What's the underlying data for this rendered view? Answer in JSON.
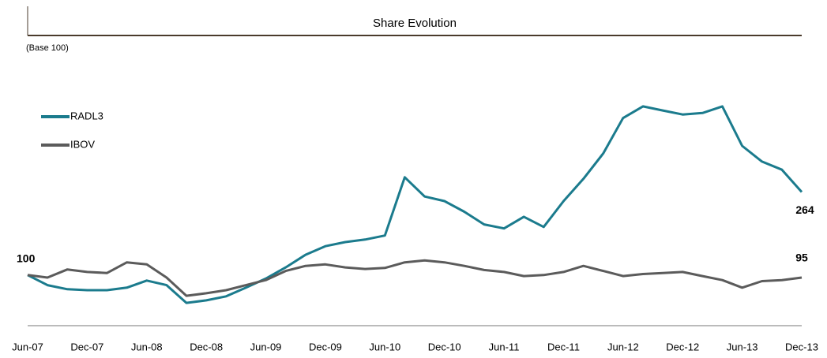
{
  "chart_data": {
    "type": "line",
    "title": "Share Evolution",
    "subtitle": "(Base 100)",
    "categories": [
      "Jun-07",
      null,
      null,
      "Dec-07",
      null,
      null,
      "Jun-08",
      null,
      null,
      "Dec-08",
      null,
      null,
      "Jun-09",
      null,
      null,
      "Dec-09",
      null,
      null,
      "Jun-10",
      null,
      null,
      "Dec-10",
      null,
      null,
      "Jun-11",
      null,
      null,
      "Dec-11",
      null,
      null,
      "Jun-12",
      null,
      null,
      "Dec-12",
      null,
      null,
      "Jun-13",
      null,
      null,
      "Dec-13"
    ],
    "series": [
      {
        "name": "RADL3",
        "color": "#1b7b8d",
        "values": [
          100,
          80,
          72,
          70,
          70,
          75,
          89,
          80,
          45,
          50,
          58,
          75,
          93,
          115,
          140,
          157,
          165,
          170,
          178,
          293,
          255,
          246,
          225,
          200,
          192,
          215,
          195,
          246,
          290,
          340,
          410,
          433,
          425,
          417,
          420,
          433,
          355,
          324,
          308,
          264
        ]
      },
      {
        "name": "IBOV",
        "color": "#5b5b5b",
        "values": [
          100,
          95,
          111,
          106,
          104,
          125,
          121,
          95,
          59,
          64,
          70,
          80,
          90,
          108,
          118,
          121,
          115,
          112,
          114,
          125,
          129,
          125,
          118,
          110,
          106,
          98,
          100,
          106,
          118,
          108,
          98,
          102,
          104,
          106,
          98,
          90,
          75,
          88,
          90,
          95
        ]
      }
    ],
    "ylim": [
      0,
      450
    ],
    "legend": "upper left"
  }
}
